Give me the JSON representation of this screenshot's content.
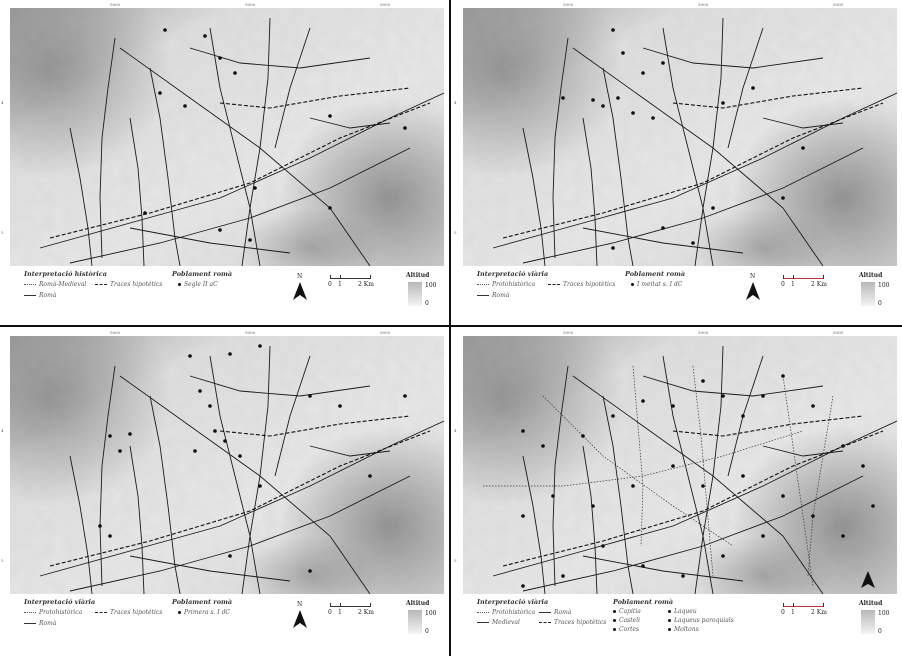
{
  "panels": [
    {
      "legend": {
        "interp_title": "Interpretació històrica",
        "items": [
          "Romà-Medieval",
          "Traces hipotètics",
          "Romà"
        ],
        "pob_title": "Poblament romà",
        "pob_items": [
          "Segle II aC"
        ]
      },
      "scale": [
        "0",
        "1",
        "2 Km"
      ],
      "north": "N",
      "alt_title": "Altitud",
      "alt_max": "100",
      "alt_min": "0",
      "coords": {
        "top": [
          "5000",
          "5000",
          "5000"
        ],
        "side": [
          "4",
          "5"
        ]
      }
    },
    {
      "legend": {
        "interp_title": "Interpretació viària",
        "items": [
          "Protohistòrica",
          "Traces hipotètics",
          "Romà"
        ],
        "pob_title": "Poblament romà",
        "pob_items": [
          "I meitat s. I dC"
        ]
      },
      "scale": [
        "0",
        "1",
        "2 Km"
      ],
      "north": "N",
      "alt_title": "Altitud",
      "alt_max": "100",
      "alt_min": "0",
      "coords": {
        "top": [
          "5000",
          "5000",
          "5000"
        ],
        "side": [
          "4",
          "5"
        ]
      }
    },
    {
      "legend": {
        "interp_title": "Interpretació viària",
        "items": [
          "Protohistòrica",
          "Traces hipotètics",
          "Romà"
        ],
        "pob_title": "Poblament romà",
        "pob_items": [
          "Primera s. I dC"
        ]
      },
      "scale": [
        "0",
        "1",
        "2 Km"
      ],
      "north": "N",
      "alt_title": "Altitud",
      "alt_max": "100",
      "alt_min": "0",
      "coords": {
        "top": [
          "5000",
          "5000",
          "5000"
        ],
        "side": [
          "4",
          "5"
        ]
      }
    },
    {
      "legend": {
        "interp_title": "Interpretació viària",
        "items": [
          "Protohistòrica",
          "Medieval",
          "Romà",
          "Traces hipotètics"
        ],
        "pob_title": "Poblament romà",
        "pob_items": [
          "Capitia",
          "Laqueu",
          "Casteli",
          "Laqueus paroquials",
          "Cortes",
          "Moltons"
        ]
      },
      "scale": [
        "0",
        "1",
        "2 Km"
      ],
      "north": "N",
      "alt_title": "Altitud",
      "alt_max": "100",
      "alt_min": "0",
      "coords": {
        "top": [
          "5000",
          "5000",
          "5000"
        ],
        "side": [
          "4",
          "5"
        ]
      }
    }
  ],
  "colors": {
    "relief_light": "#e6e6e6",
    "relief_dark": "#8f8f8f",
    "roads": "#1a1a1a",
    "accent_red": "#b33333"
  },
  "icons": [
    "north-arrow-icon",
    "settlement-dot-icon"
  ]
}
